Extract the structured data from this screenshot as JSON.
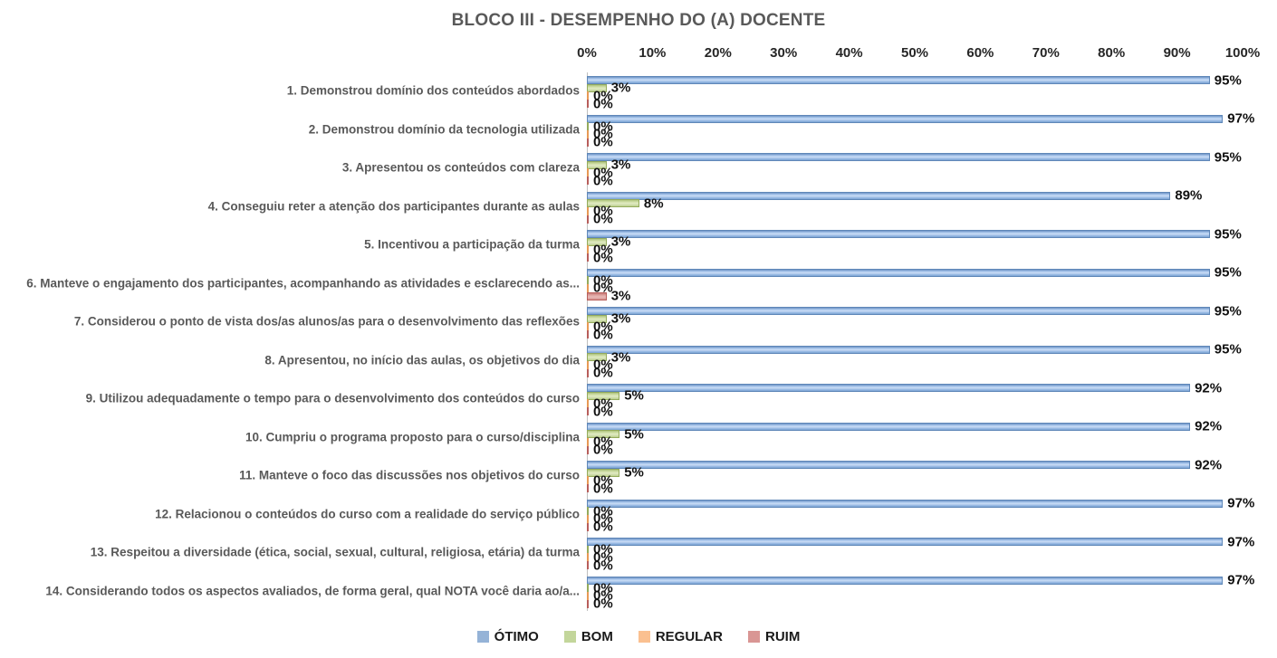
{
  "title": "BLOCO III - DESEMPENHO DO (A) DOCENTE",
  "chart_data": {
    "type": "bar",
    "orientation": "horizontal",
    "title": "BLOCO III - DESEMPENHO DO (A) DOCENTE",
    "grid": false,
    "legend_position": "bottom",
    "value_suffix": "%",
    "x_axis": {
      "min": 0,
      "max": 100,
      "position": "top",
      "ticks": [
        "0%",
        "10%",
        "20%",
        "30%",
        "40%",
        "50%",
        "60%",
        "70%",
        "80%",
        "90%",
        "100%"
      ]
    },
    "categories": [
      "1. Demonstrou domínio dos conteúdos abordados",
      "2. Demonstrou domínio da tecnologia utilizada",
      "3. Apresentou os conteúdos com clareza",
      "4. Conseguiu reter a atenção dos participantes durante as aulas",
      "5. Incentivou a participação da turma",
      "6. Manteve o engajamento dos participantes, acompanhando as atividades e esclarecendo as...",
      "7. Considerou o ponto de vista dos/as alunos/as para o desenvolvimento das reflexões",
      "8. Apresentou, no início das aulas, os objetivos do dia",
      "9. Utilizou adequadamente o tempo para o desenvolvimento dos conteúdos do curso",
      "10. Cumpriu o programa proposto para o curso/disciplina",
      "11. Manteve o foco das discussões nos objetivos do curso",
      "12. Relacionou o conteúdos do curso com a realidade do serviço público",
      "13. Respeitou a diversidade (ética, social, sexual, cultural, religiosa, etária) da turma",
      "14. Considerando todos os aspectos avaliados, de forma geral, qual NOTA você daria ao/a..."
    ],
    "series": [
      {
        "name": "ÓTIMO",
        "color": "#95b3d7",
        "values": [
          95,
          97,
          95,
          89,
          95,
          95,
          95,
          95,
          92,
          92,
          92,
          97,
          97,
          97
        ]
      },
      {
        "name": "BOM",
        "color": "#c3d69b",
        "values": [
          3,
          0,
          3,
          8,
          3,
          0,
          3,
          3,
          5,
          5,
          5,
          0,
          0,
          0
        ]
      },
      {
        "name": "REGULAR",
        "color": "#fac090",
        "values": [
          0,
          0,
          0,
          0,
          0,
          0,
          0,
          0,
          0,
          0,
          0,
          0,
          0,
          0
        ]
      },
      {
        "name": "RUIM",
        "color": "#d99694",
        "values": [
          0,
          0,
          0,
          0,
          0,
          3,
          0,
          0,
          0,
          0,
          0,
          0,
          0,
          0
        ]
      }
    ]
  }
}
